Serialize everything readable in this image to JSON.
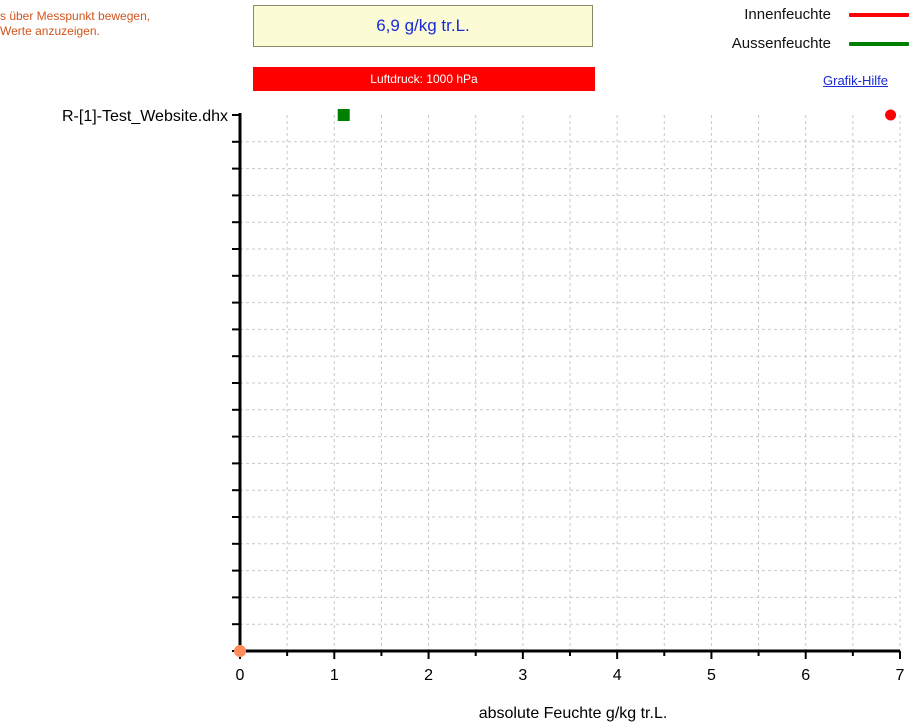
{
  "hint_text": "s über Messpunkt bewegen,\nWerte anzuzeigen.",
  "value_display": "6,9 g/kg tr.L.",
  "pressure_label": "Luftdruck: 1000 hPa",
  "legend": [
    {
      "label": "Innenfeuchte",
      "color": "#ff0000"
    },
    {
      "label": "Aussenfeuchte",
      "color": "#008000"
    }
  ],
  "help_link": "Grafik-Hilfe",
  "chart_data": {
    "type": "scatter",
    "category_label": "R-[1]-Test_Website.dhx",
    "xlabel": "absolute Feuchte g/kg tr.L.",
    "xlim": [
      0,
      7
    ],
    "x_ticks": [
      "0",
      "1",
      "2",
      "3",
      "4",
      "5",
      "6",
      "7"
    ],
    "grid": true,
    "series": [
      {
        "name": "Innenfeuchte",
        "color": "#ff0000",
        "marker": "circle",
        "points": [
          {
            "x": 6.9,
            "category": "R-[1]-Test_Website.dhx"
          }
        ]
      },
      {
        "name": "Aussenfeuchte",
        "color": "#008000",
        "marker": "square",
        "points": [
          {
            "x": 1.1,
            "category": "R-[1]-Test_Website.dhx"
          }
        ]
      }
    ],
    "origin_marker": {
      "x": 0,
      "color": "#ff8c5a"
    }
  }
}
